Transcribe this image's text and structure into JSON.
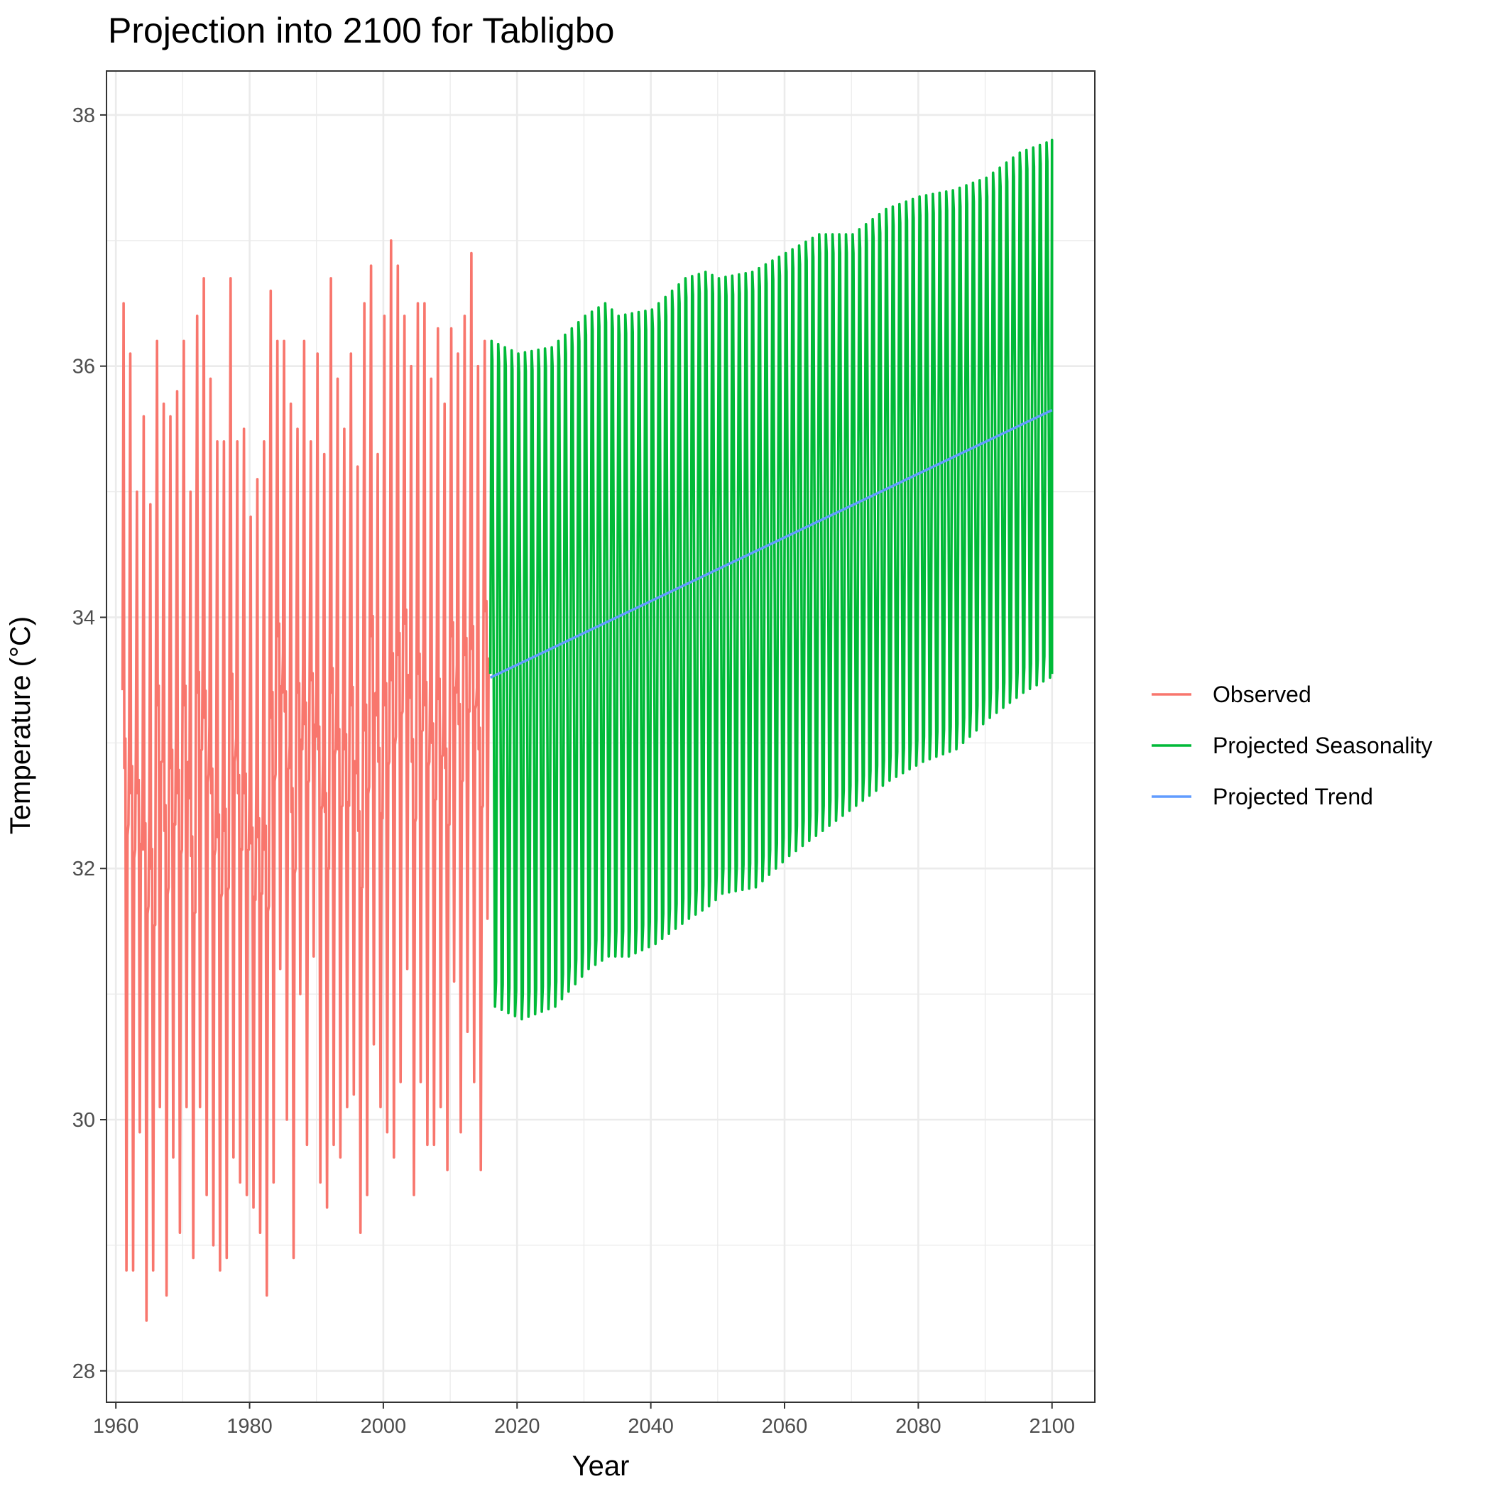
{
  "chart_data": {
    "type": "line",
    "title": "Projection into 2100 for Tabligbo",
    "xlabel": "Year",
    "ylabel": "Temperature (°C)",
    "xlim": [
      1958.6,
      2106.4
    ],
    "ylim": [
      27.75,
      38.35
    ],
    "x_ticks": [
      1960,
      1980,
      2000,
      2020,
      2040,
      2060,
      2080,
      2100
    ],
    "x_tick_labels": [
      "1960",
      "1980",
      "2000",
      "2020",
      "2040",
      "2060",
      "2080",
      "2100"
    ],
    "y_ticks": [
      28,
      30,
      32,
      34,
      36,
      38
    ],
    "y_tick_labels": [
      "28",
      "30",
      "32",
      "34",
      "36",
      "38"
    ],
    "grid": true,
    "legend_position": "right",
    "series": [
      {
        "name": "Observed",
        "color": "#F8766D",
        "years": [
          1961,
          1962,
          1963,
          1964,
          1965,
          1966,
          1967,
          1968,
          1969,
          1970,
          1971,
          1972,
          1973,
          1974,
          1975,
          1976,
          1977,
          1978,
          1979,
          1980,
          1981,
          1982,
          1983,
          1984,
          1985,
          1986,
          1987,
          1988,
          1989,
          1990,
          1991,
          1992,
          1993,
          1994,
          1995,
          1996,
          1997,
          1998,
          1999,
          2000,
          2001,
          2002,
          2003,
          2004,
          2005,
          2006,
          2007,
          2008,
          2009,
          2010,
          2011,
          2012,
          2013,
          2014,
          2015
        ],
        "annual_max": [
          36.5,
          36.1,
          35.0,
          35.6,
          34.9,
          36.2,
          35.7,
          35.6,
          35.8,
          36.2,
          35.0,
          36.4,
          36.7,
          35.9,
          35.4,
          35.4,
          36.7,
          35.4,
          35.5,
          34.8,
          35.1,
          35.4,
          36.6,
          36.2,
          36.2,
          35.7,
          35.5,
          36.2,
          35.4,
          36.1,
          35.3,
          36.7,
          35.9,
          35.5,
          36.1,
          35.2,
          36.5,
          36.8,
          35.3,
          36.4,
          37.0,
          36.8,
          36.4,
          36.0,
          36.5,
          36.5,
          35.9,
          36.3,
          35.7,
          36.3,
          36.1,
          36.4,
          36.9,
          36.0,
          36.2
        ],
        "annual_min": [
          28.8,
          28.8,
          29.9,
          28.4,
          28.8,
          30.1,
          28.6,
          29.7,
          29.1,
          30.1,
          28.9,
          30.1,
          29.4,
          29.0,
          28.8,
          28.9,
          29.7,
          29.5,
          29.4,
          29.3,
          29.1,
          28.6,
          29.5,
          31.2,
          30.0,
          28.9,
          31.0,
          29.8,
          31.3,
          29.5,
          29.3,
          29.8,
          29.7,
          30.1,
          30.2,
          29.1,
          29.4,
          30.6,
          30.1,
          29.9,
          29.7,
          30.3,
          31.2,
          29.4,
          30.3,
          29.8,
          29.8,
          30.1,
          29.6,
          31.1,
          29.9,
          30.7,
          30.3,
          29.6,
          31.6
        ]
      },
      {
        "name": "Projected Seasonality",
        "color": "#00BA38",
        "envelope_start_year": 2016,
        "envelope_end_year": 2100,
        "annual_max": [
          [
            2016,
            36.2
          ],
          [
            2020,
            36.1
          ],
          [
            2025,
            36.15
          ],
          [
            2030,
            36.4
          ],
          [
            2033,
            36.5
          ],
          [
            2035,
            36.4
          ],
          [
            2040,
            36.45
          ],
          [
            2045,
            36.7
          ],
          [
            2048,
            36.75
          ],
          [
            2050,
            36.7
          ],
          [
            2055,
            36.75
          ],
          [
            2060,
            36.9
          ],
          [
            2065,
            37.05
          ],
          [
            2070,
            37.05
          ],
          [
            2075,
            37.25
          ],
          [
            2080,
            37.35
          ],
          [
            2085,
            37.4
          ],
          [
            2090,
            37.5
          ],
          [
            2095,
            37.7
          ],
          [
            2100,
            37.8
          ]
        ],
        "annual_min": [
          [
            2016,
            30.9
          ],
          [
            2020,
            30.8
          ],
          [
            2025,
            30.9
          ],
          [
            2030,
            31.2
          ],
          [
            2033,
            31.3
          ],
          [
            2036,
            31.3
          ],
          [
            2040,
            31.4
          ],
          [
            2045,
            31.6
          ],
          [
            2048,
            31.7
          ],
          [
            2050,
            31.8
          ],
          [
            2055,
            31.85
          ],
          [
            2060,
            32.1
          ],
          [
            2065,
            32.3
          ],
          [
            2070,
            32.5
          ],
          [
            2075,
            32.7
          ],
          [
            2080,
            32.85
          ],
          [
            2085,
            32.95
          ],
          [
            2090,
            33.2
          ],
          [
            2095,
            33.4
          ],
          [
            2100,
            33.55
          ]
        ]
      },
      {
        "name": "Projected Trend",
        "color": "#619CFF",
        "x": [
          2016,
          2100
        ],
        "y": [
          33.52,
          35.65
        ]
      }
    ]
  }
}
